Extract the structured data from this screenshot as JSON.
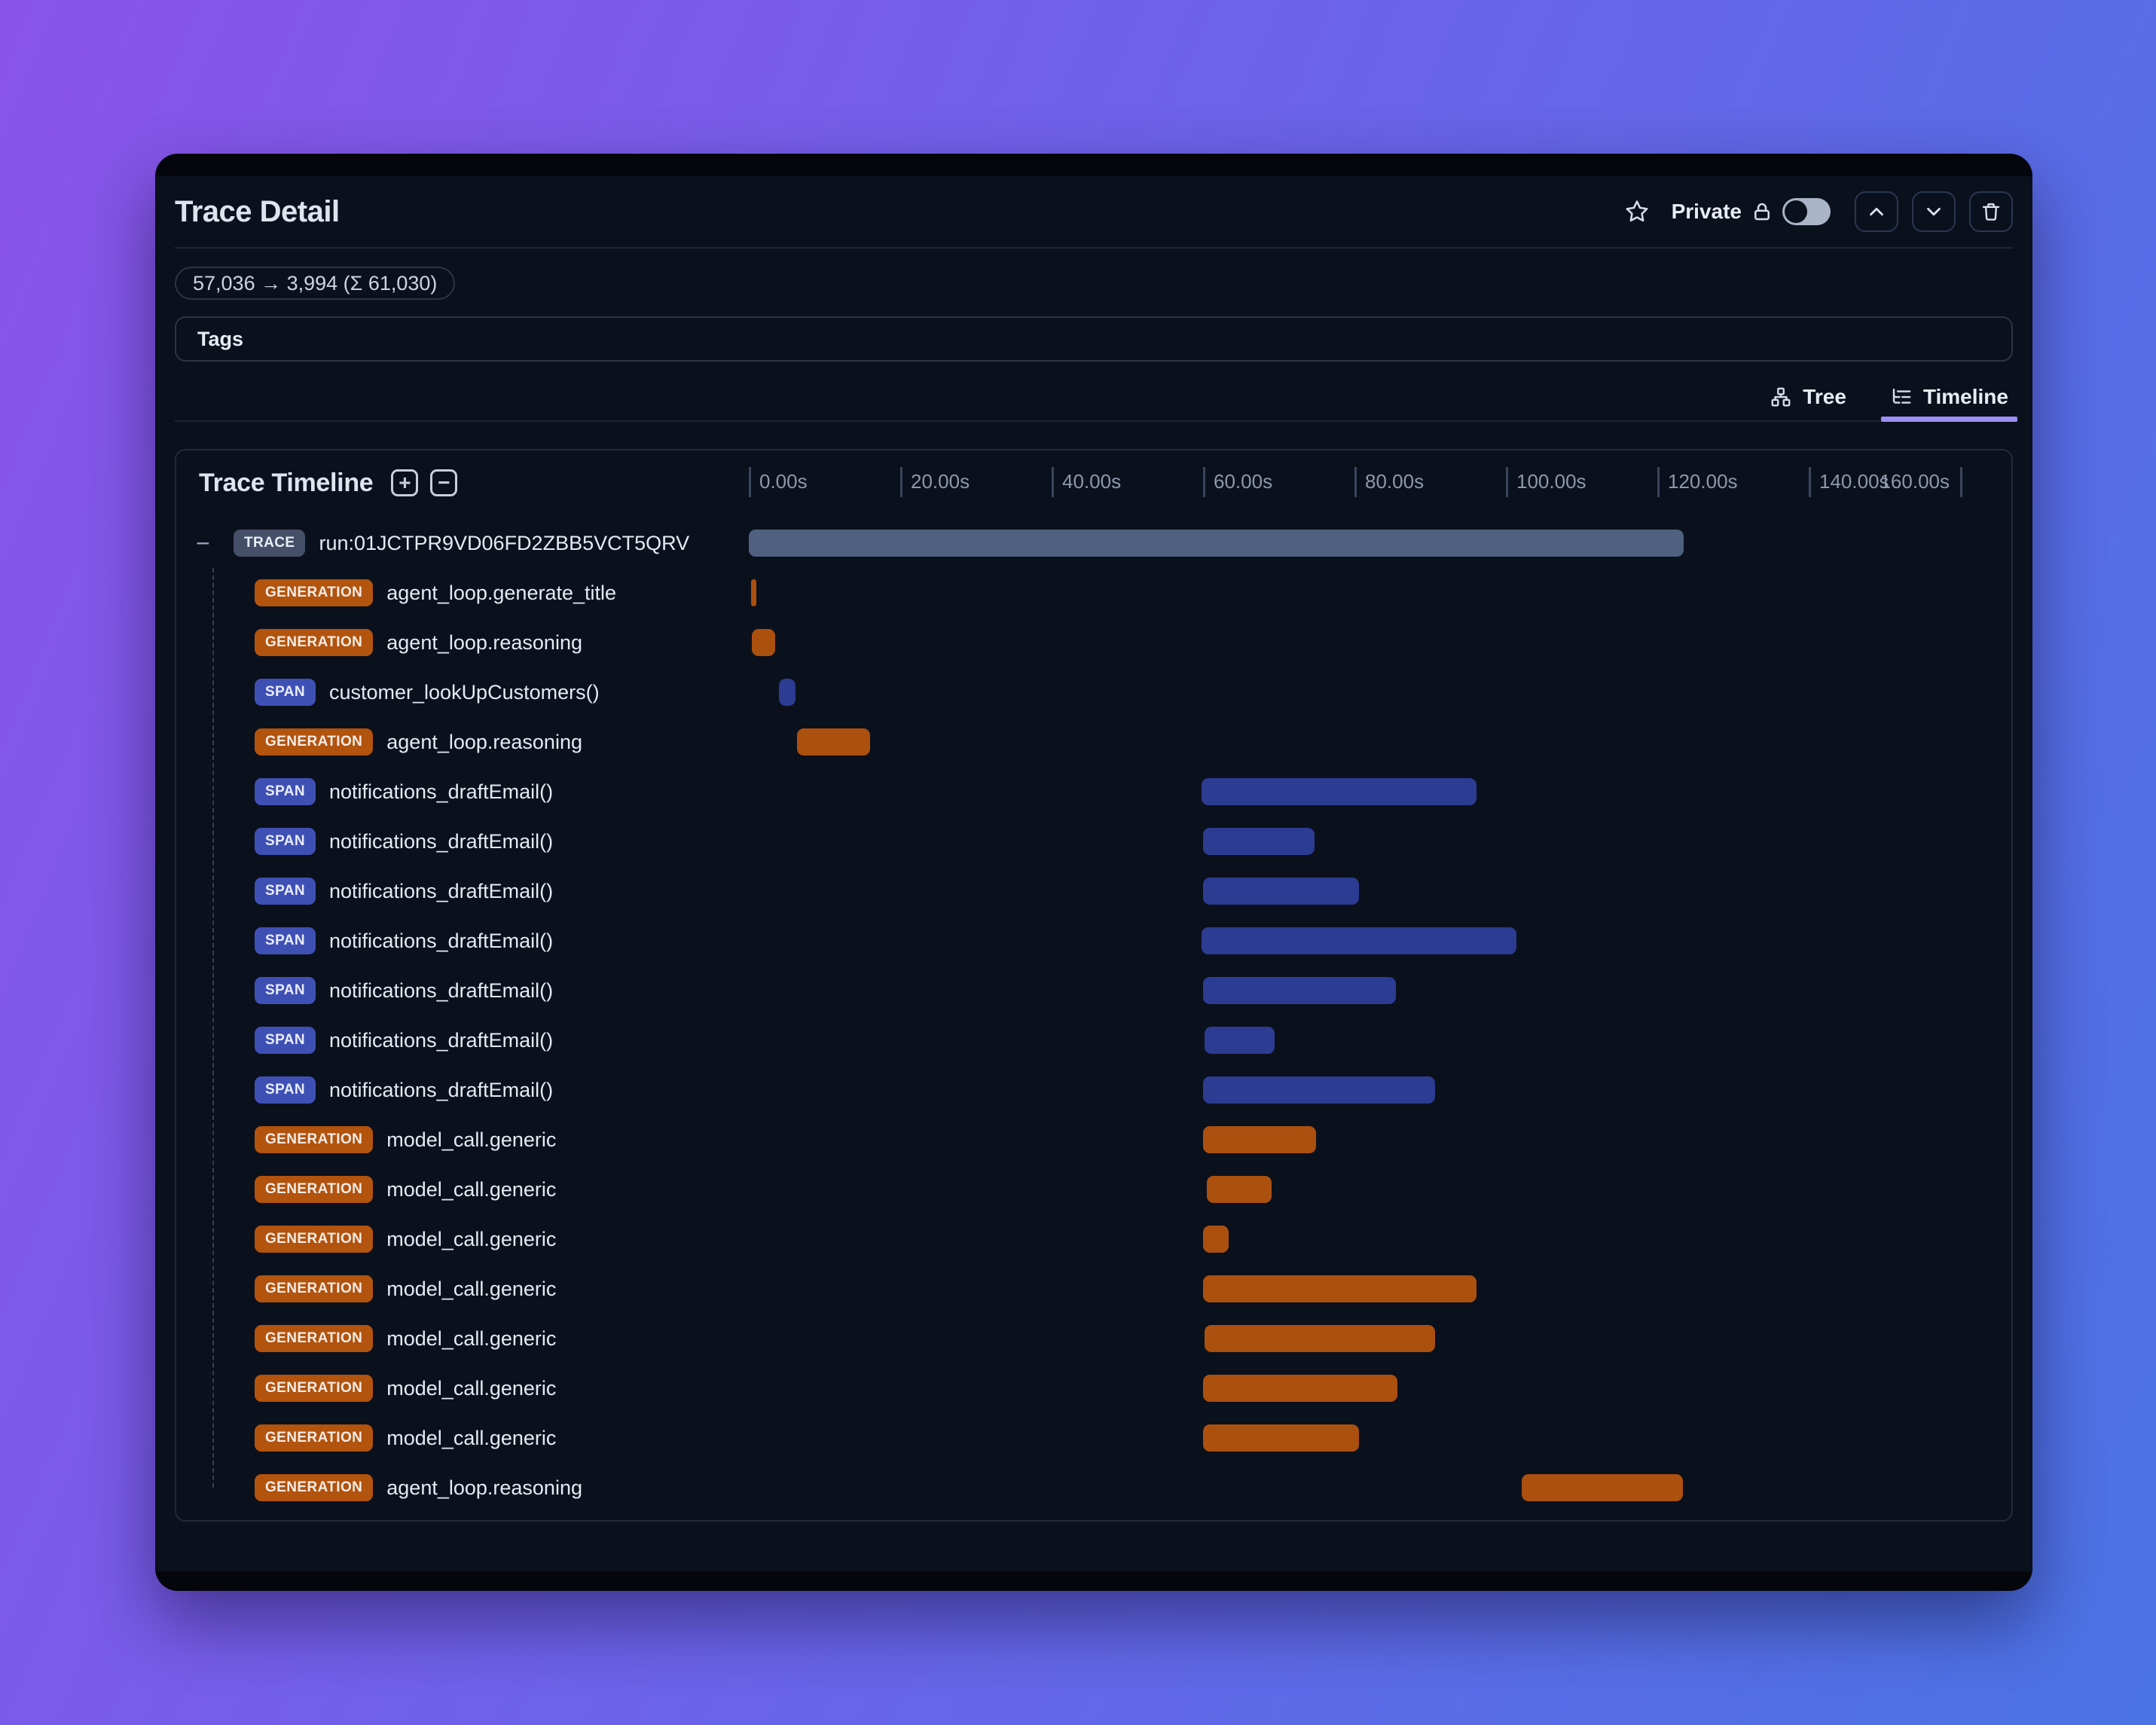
{
  "header": {
    "title": "Trace Detail",
    "private_label": "Private",
    "private_toggle_state": "off"
  },
  "token_badge": {
    "text": "57,036 → 3,994 (Σ 61,030)"
  },
  "tags": {
    "label": "Tags"
  },
  "view_tabs": {
    "tree": {
      "label": "Tree",
      "active": false
    },
    "timeline": {
      "label": "Timeline",
      "active": true
    }
  },
  "timeline": {
    "title": "Trace Timeline",
    "axis_ticks": [
      {
        "label": "0.00s",
        "s": 0
      },
      {
        "label": "20.00s",
        "s": 20
      },
      {
        "label": "40.00s",
        "s": 40
      },
      {
        "label": "60.00s",
        "s": 60
      },
      {
        "label": "80.00s",
        "s": 80
      },
      {
        "label": "100.00s",
        "s": 100
      },
      {
        "label": "120.00s",
        "s": 120
      },
      {
        "label": "140.00s",
        "s": 140
      },
      {
        "label": "160.00s",
        "s": 160,
        "align": "left"
      }
    ],
    "rows": [
      {
        "type": "TRACE",
        "label": "run:01JCTPR9VD06FD2ZBB5VCT5QRV",
        "start_s": 0,
        "end_s": 123.5,
        "root": true
      },
      {
        "type": "GENERATION",
        "label": "agent_loop.generate_title",
        "start_s": 0.3,
        "end_s": 1.0
      },
      {
        "type": "GENERATION",
        "label": "agent_loop.reasoning",
        "start_s": 0.4,
        "end_s": 3.5
      },
      {
        "type": "SPAN",
        "label": "customer_lookUpCustomers()",
        "start_s": 4.0,
        "end_s": 6.2
      },
      {
        "type": "GENERATION",
        "label": "agent_loop.reasoning",
        "start_s": 6.4,
        "end_s": 16.0
      },
      {
        "type": "SPAN",
        "label": "notifications_draftEmail()",
        "start_s": 59.8,
        "end_s": 96.1
      },
      {
        "type": "SPAN",
        "label": "notifications_draftEmail()",
        "start_s": 60.0,
        "end_s": 74.7
      },
      {
        "type": "SPAN",
        "label": "notifications_draftEmail()",
        "start_s": 60.0,
        "end_s": 80.6
      },
      {
        "type": "SPAN",
        "label": "notifications_draftEmail()",
        "start_s": 59.8,
        "end_s": 101.4
      },
      {
        "type": "SPAN",
        "label": "notifications_draftEmail()",
        "start_s": 60.0,
        "end_s": 85.5
      },
      {
        "type": "SPAN",
        "label": "notifications_draftEmail()",
        "start_s": 60.2,
        "end_s": 69.5
      },
      {
        "type": "SPAN",
        "label": "notifications_draftEmail()",
        "start_s": 60.0,
        "end_s": 90.6
      },
      {
        "type": "GENERATION",
        "label": "model_call.generic",
        "start_s": 60.0,
        "end_s": 74.9
      },
      {
        "type": "GENERATION",
        "label": "model_call.generic",
        "start_s": 60.5,
        "end_s": 69.1
      },
      {
        "type": "GENERATION",
        "label": "model_call.generic",
        "start_s": 60.0,
        "end_s": 63.4
      },
      {
        "type": "GENERATION",
        "label": "model_call.generic",
        "start_s": 60.0,
        "end_s": 96.1
      },
      {
        "type": "GENERATION",
        "label": "model_call.generic",
        "start_s": 60.2,
        "end_s": 90.6
      },
      {
        "type": "GENERATION",
        "label": "model_call.generic",
        "start_s": 60.0,
        "end_s": 85.7
      },
      {
        "type": "GENERATION",
        "label": "model_call.generic",
        "start_s": 60.0,
        "end_s": 80.6
      },
      {
        "type": "GENERATION",
        "label": "agent_loop.reasoning",
        "start_s": 102.1,
        "end_s": 123.4
      }
    ]
  },
  "colors": {
    "accent_tab_underline": "#9c8df4",
    "badge_trace": "#454f68",
    "badge_generation": "#b2530e",
    "badge_span": "#3f50b5",
    "bar_trace": "#50617f",
    "bar_generation": "#ab500f",
    "bar_span": "#2c3c92",
    "background_gradient_start": "#8a53e8",
    "background_gradient_end": "#4a73e4"
  }
}
